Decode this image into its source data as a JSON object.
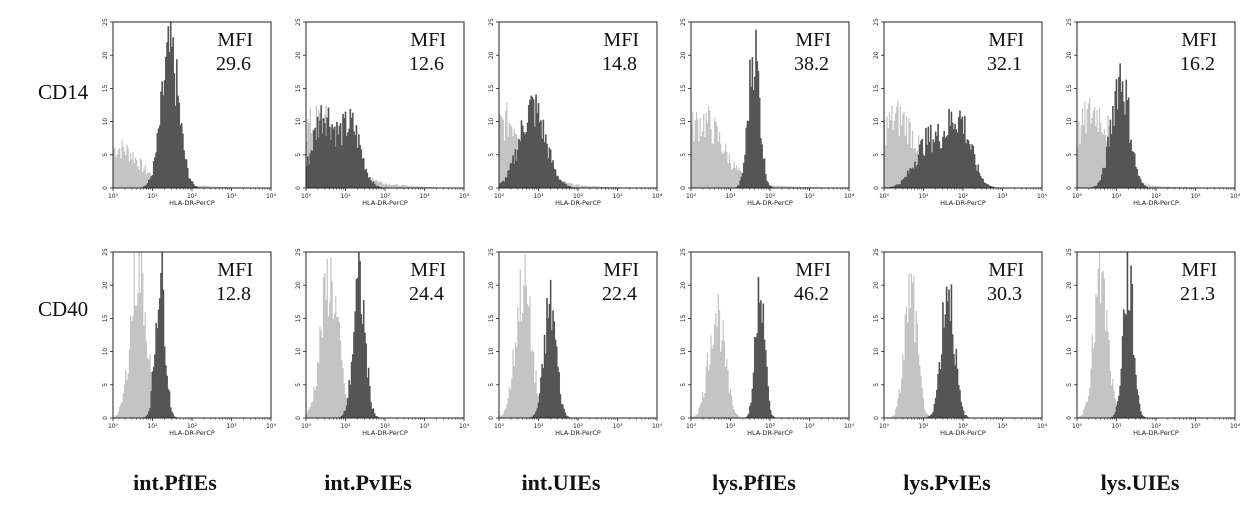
{
  "chart_data": {
    "type": "histogram-grid",
    "xlabel": "HLA-DR-PerCP",
    "x_scale": "log",
    "xlim": [
      1,
      10000
    ],
    "x_ticks": [
      "10⁰",
      "10¹",
      "10²",
      "10³",
      "10⁴"
    ],
    "ylim": [
      0,
      25
    ],
    "y_ticks": [
      "0",
      "5",
      "10",
      "15",
      "20",
      "25"
    ],
    "mfi_label": "MFI",
    "rows": [
      "CD14",
      "CD40"
    ],
    "columns": [
      "int.PfIEs",
      "int.PvIEs",
      "int.UIEs",
      "lys.PfIEs",
      "lys.PvIEs",
      "lys.UIEs"
    ],
    "colors": {
      "control": "#c4c4c4",
      "stained": "#555555"
    },
    "panels": [
      [
        {
          "mfi": "29.6",
          "control": {
            "peak": 4,
            "mu": 0.15,
            "sigma": 0.45,
            "tail": 2
          },
          "stained": [
            {
              "peak": 20,
              "mu": 1.45,
              "sigma": 0.22
            }
          ]
        },
        {
          "mfi": "12.6",
          "control": {
            "peak": 7,
            "mu": 0.35,
            "sigma": 0.6,
            "tail": 3
          },
          "stained": [
            {
              "peak": 11,
              "mu": 0.45,
              "sigma": 0.28
            },
            {
              "peak": 9,
              "mu": 1.15,
              "sigma": 0.25
            }
          ]
        },
        {
          "mfi": "14.8",
          "control": {
            "peak": 8,
            "mu": 0.25,
            "sigma": 0.55,
            "tail": 2
          },
          "stained": [
            {
              "peak": 12,
              "mu": 0.85,
              "sigma": 0.33
            }
          ]
        },
        {
          "mfi": "38.2",
          "control": {
            "peak": 8,
            "mu": 0.3,
            "sigma": 0.5,
            "tail": 2
          },
          "stained": [
            {
              "peak": 21,
              "mu": 1.6,
              "sigma": 0.14
            }
          ]
        },
        {
          "mfi": "32.1",
          "control": {
            "peak": 9,
            "mu": 0.35,
            "sigma": 0.5,
            "tail": 1.5
          },
          "stained": [
            {
              "peak": 7,
              "mu": 1.15,
              "sigma": 0.35
            },
            {
              "peak": 10,
              "mu": 1.9,
              "sigma": 0.3
            }
          ]
        },
        {
          "mfi": "16.2",
          "control": {
            "peak": 10,
            "mu": 0.45,
            "sigma": 0.45,
            "tail": 1.5
          },
          "stained": [
            {
              "peak": 17,
              "mu": 1.1,
              "sigma": 0.22
            }
          ]
        }
      ],
      [
        {
          "mfi": "12.8",
          "control": {
            "peak": 23,
            "mu": 0.65,
            "sigma": 0.2,
            "tail": 0
          },
          "stained": [
            {
              "peak": 22,
              "mu": 1.2,
              "sigma": 0.12
            }
          ]
        },
        {
          "mfi": "24.4",
          "control": {
            "peak": 21,
            "mu": 0.6,
            "sigma": 0.22,
            "tail": 0
          },
          "stained": [
            {
              "peak": 20,
              "mu": 1.35,
              "sigma": 0.15
            }
          ]
        },
        {
          "mfi": "22.4",
          "control": {
            "peak": 20,
            "mu": 0.62,
            "sigma": 0.2,
            "tail": 0
          },
          "stained": [
            {
              "peak": 17,
              "mu": 1.3,
              "sigma": 0.15
            }
          ]
        },
        {
          "mfi": "46.2",
          "control": {
            "peak": 16,
            "mu": 0.65,
            "sigma": 0.2,
            "tail": 0
          },
          "stained": [
            {
              "peak": 22,
              "mu": 1.75,
              "sigma": 0.11
            }
          ]
        },
        {
          "mfi": "30.3",
          "control": {
            "peak": 19,
            "mu": 0.68,
            "sigma": 0.16,
            "tail": 0
          },
          "stained": [
            {
              "peak": 20,
              "mu": 1.62,
              "sigma": 0.16
            }
          ]
        },
        {
          "mfi": "21.3",
          "control": {
            "peak": 20,
            "mu": 0.6,
            "sigma": 0.18,
            "tail": 0
          },
          "stained": [
            {
              "peak": 21,
              "mu": 1.3,
              "sigma": 0.13
            }
          ]
        }
      ]
    ]
  }
}
